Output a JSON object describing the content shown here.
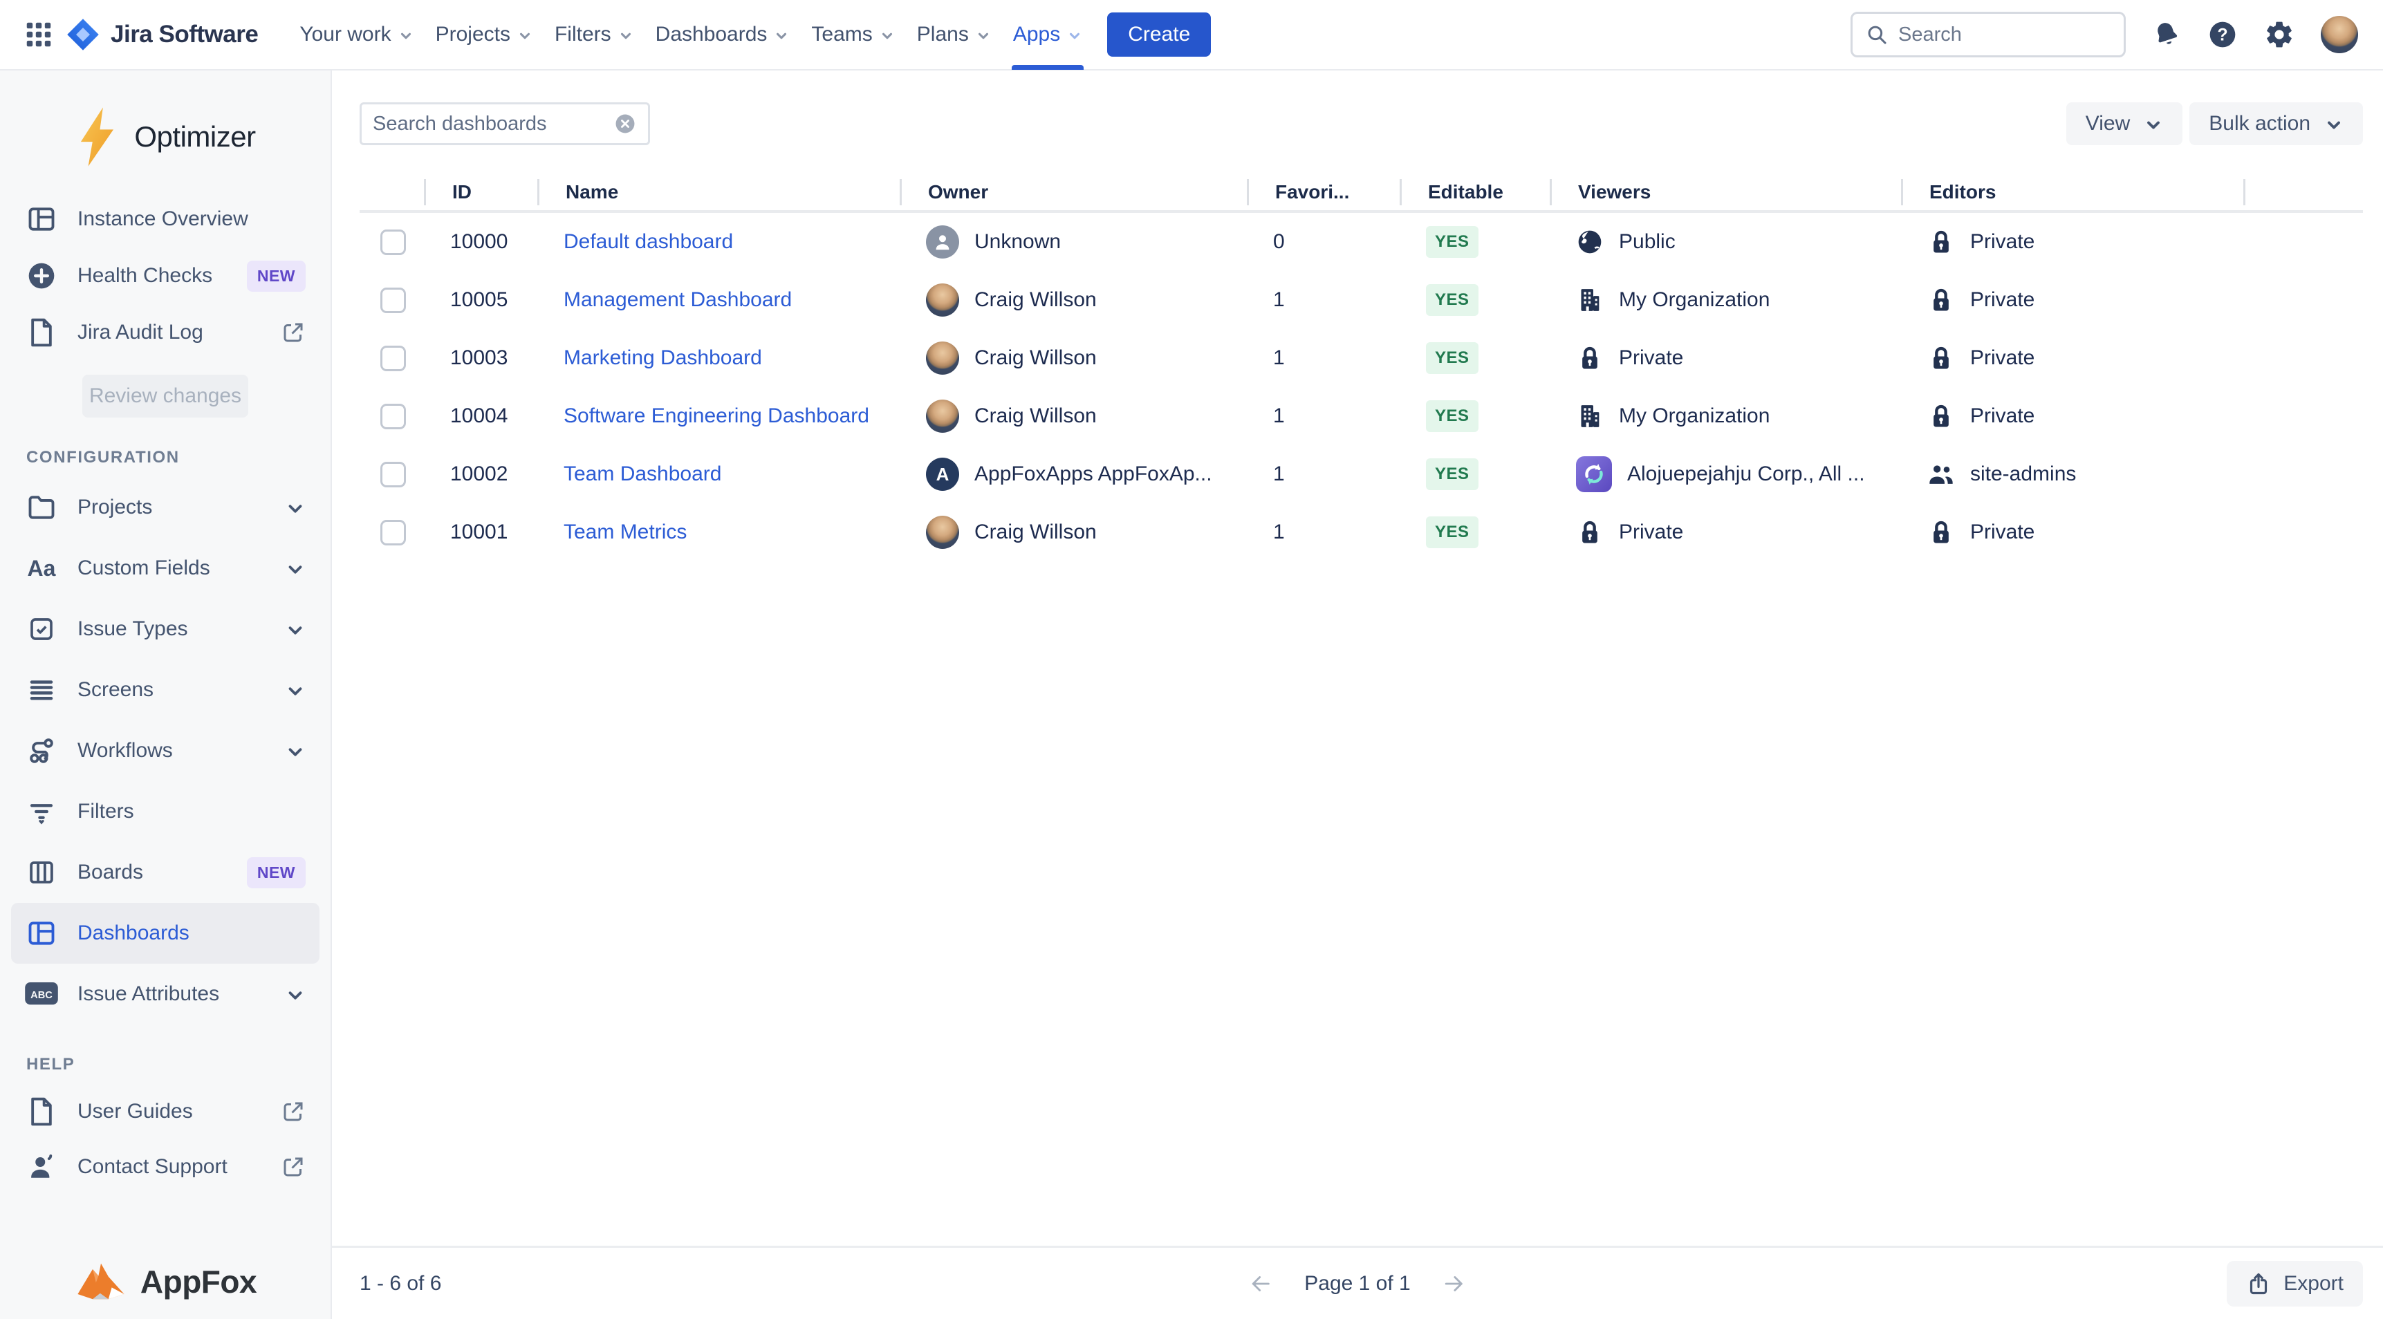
{
  "topnav": {
    "product": "Jira Software",
    "items": [
      {
        "label": "Your work"
      },
      {
        "label": "Projects"
      },
      {
        "label": "Filters"
      },
      {
        "label": "Dashboards"
      },
      {
        "label": "Teams"
      },
      {
        "label": "Plans"
      },
      {
        "label": "Apps",
        "active": true
      }
    ],
    "create_label": "Create",
    "search_placeholder": "Search"
  },
  "sidebar": {
    "app_name": "Optimizer",
    "primary": [
      {
        "label": "Instance Overview",
        "icon": "layout"
      },
      {
        "label": "Health Checks",
        "icon": "plus-circle",
        "badge": "NEW"
      },
      {
        "label": "Jira Audit Log",
        "icon": "document",
        "external": true
      }
    ],
    "review_button": "Review changes",
    "config_title": "CONFIGURATION",
    "config_items": [
      {
        "label": "Projects",
        "icon": "folder",
        "chevron": true
      },
      {
        "label": "Custom Fields",
        "icon": "text-style",
        "chevron": true
      },
      {
        "label": "Issue Types",
        "icon": "checkbox",
        "chevron": true
      },
      {
        "label": "Screens",
        "icon": "lines",
        "chevron": true
      },
      {
        "label": "Workflows",
        "icon": "workflow",
        "chevron": true
      },
      {
        "label": "Filters",
        "icon": "filter"
      },
      {
        "label": "Boards",
        "icon": "columns",
        "badge": "NEW"
      },
      {
        "label": "Dashboards",
        "icon": "layout",
        "active": true
      },
      {
        "label": "Issue Attributes",
        "icon": "abc",
        "chevron": true
      }
    ],
    "help_title": "HELP",
    "help_items": [
      {
        "label": "User Guides",
        "icon": "document",
        "external": true
      },
      {
        "label": "Contact Support",
        "icon": "person",
        "external": true
      }
    ],
    "footer_brand": "AppFox"
  },
  "toolbar": {
    "search_placeholder": "Search dashboards",
    "view_label": "View",
    "bulk_label": "Bulk action"
  },
  "table": {
    "columns": [
      "ID",
      "Name",
      "Owner",
      "Favori...",
      "Editable",
      "Viewers",
      "Editors"
    ],
    "rows": [
      {
        "id": "10000",
        "name": "Default dashboard",
        "owner": "Unknown",
        "avatar": "unknown",
        "favorites": "0",
        "editable": "YES",
        "viewers": {
          "icon": "globe",
          "label": "Public"
        },
        "editors": {
          "icon": "lock",
          "label": "Private"
        }
      },
      {
        "id": "10005",
        "name": "Management Dashboard",
        "owner": "Craig Willson",
        "avatar": "photo",
        "favorites": "1",
        "editable": "YES",
        "viewers": {
          "icon": "building",
          "label": "My Organization"
        },
        "editors": {
          "icon": "lock",
          "label": "Private"
        }
      },
      {
        "id": "10003",
        "name": "Marketing Dashboard",
        "owner": "Craig Willson",
        "avatar": "photo",
        "favorites": "1",
        "editable": "YES",
        "viewers": {
          "icon": "lock",
          "label": "Private"
        },
        "editors": {
          "icon": "lock",
          "label": "Private"
        }
      },
      {
        "id": "10004",
        "name": "Software Engineering Dashboard",
        "owner": "Craig Willson",
        "avatar": "photo",
        "favorites": "1",
        "editable": "YES",
        "viewers": {
          "icon": "building",
          "label": "My Organization"
        },
        "editors": {
          "icon": "lock",
          "label": "Private"
        }
      },
      {
        "id": "10002",
        "name": "Team Dashboard",
        "owner": "AppFoxApps AppFoxAp...",
        "avatar": "letter",
        "avatar_letter": "A",
        "favorites": "1",
        "editable": "YES",
        "viewers": {
          "icon": "sync-app",
          "label": "Alojuepejahju Corp., All ..."
        },
        "editors": {
          "icon": "people",
          "label": "site-admins"
        }
      },
      {
        "id": "10001",
        "name": "Team Metrics",
        "owner": "Craig Willson",
        "avatar": "photo",
        "favorites": "1",
        "editable": "YES",
        "viewers": {
          "icon": "lock",
          "label": "Private"
        },
        "editors": {
          "icon": "lock",
          "label": "Private"
        }
      }
    ]
  },
  "footer": {
    "range": "1 - 6 of 6",
    "page": "Page 1 of 1",
    "export_label": "Export"
  },
  "colors": {
    "accent_blue": "#2c5cd5",
    "create_button": "#2656cc",
    "link": "#2c5cd5",
    "badge_new_bg": "#ebe6fb",
    "badge_new_text": "#6048c8",
    "yes_bg": "#e4f6eb",
    "yes_text": "#217a4f",
    "bolt_gold": "#f2a93c",
    "fox_orange": "#ec7d2b"
  }
}
